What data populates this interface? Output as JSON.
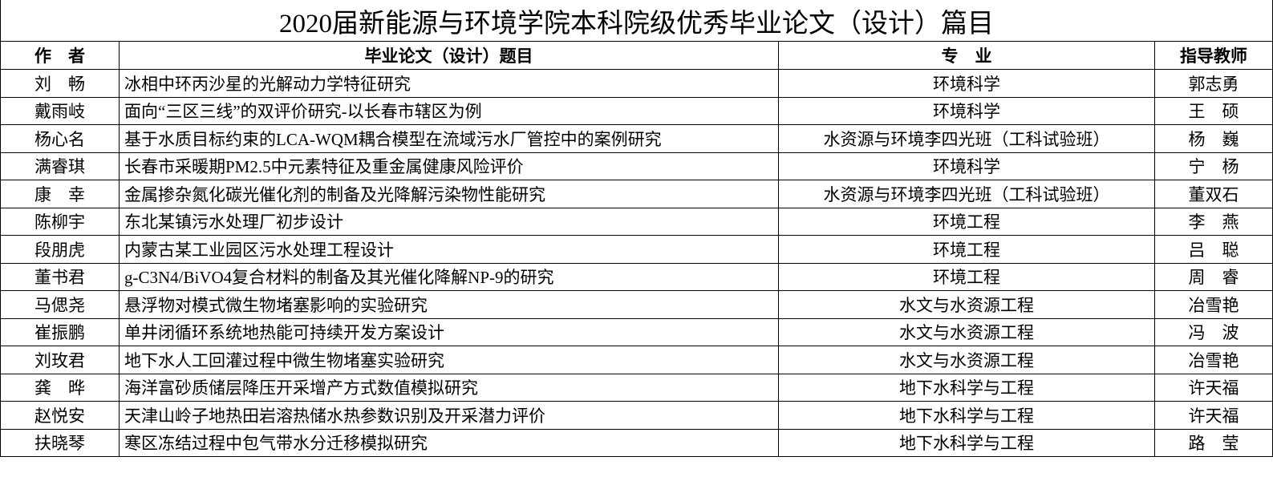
{
  "title": "2020届新能源与环境学院本科院级优秀毕业论文（设计）篇目",
  "headers": [
    "作　者",
    "毕业论文（设计）题目",
    "专　业",
    "指导教师"
  ],
  "rows": [
    {
      "author": "刘　畅",
      "title": "冰相中环丙沙星的光解动力学特征研究",
      "major": "环境科学",
      "advisor": "郭志勇"
    },
    {
      "author": "戴雨岐",
      "title": "面向“三区三线”的双评价研究-以长春市辖区为例",
      "major": "环境科学",
      "advisor": "王　硕"
    },
    {
      "author": "杨心名",
      "title": "基于水质目标约束的LCA-WQM耦合模型在流域污水厂管控中的案例研究",
      "major": "水资源与环境李四光班（工科试验班）",
      "advisor": "杨　巍"
    },
    {
      "author": "满睿琪",
      "title": "长春市采暖期PM2.5中元素特征及重金属健康风险评价",
      "major": "环境科学",
      "advisor": "宁　杨"
    },
    {
      "author": "康　幸",
      "title": "金属掺杂氮化碳光催化剂的制备及光降解污染物性能研究",
      "major": "水资源与环境李四光班（工科试验班）",
      "advisor": "董双石"
    },
    {
      "author": "陈柳宇",
      "title": "东北某镇污水处理厂初步设计",
      "major": "环境工程",
      "advisor": "李　燕"
    },
    {
      "author": "段朋虎",
      "title": "内蒙古某工业园区污水处理工程设计",
      "major": "环境工程",
      "advisor": "吕　聪"
    },
    {
      "author": "董书君",
      "title": "g-C3N4/BiVO4复合材料的制备及其光催化降解NP-9的研究",
      "major": "环境工程",
      "advisor": "周　睿"
    },
    {
      "author": "马偲尧",
      "title": "悬浮物对模式微生物堵塞影响的实验研究",
      "major": "水文与水资源工程",
      "advisor": "冶雪艳"
    },
    {
      "author": "崔振鹏",
      "title": "单井闭循环系统地热能可持续开发方案设计",
      "major": "水文与水资源工程",
      "advisor": "冯　波"
    },
    {
      "author": "刘玫君",
      "title": "地下水人工回灌过程中微生物堵塞实验研究",
      "major": "水文与水资源工程",
      "advisor": "冶雪艳"
    },
    {
      "author": "龚　晔",
      "title": "海洋富砂质储层降压开采增产方式数值模拟研究",
      "major": "地下水科学与工程",
      "advisor": "许天福"
    },
    {
      "author": "赵悦安",
      "title": "天津山岭子地热田岩溶热储水热参数识别及开采潜力评价",
      "major": "地下水科学与工程",
      "advisor": "许天福"
    },
    {
      "author": "扶晓琴",
      "title": "寒区冻结过程中包气带水分迁移模拟研究",
      "major": "地下水科学与工程",
      "advisor": "路　莹"
    }
  ]
}
